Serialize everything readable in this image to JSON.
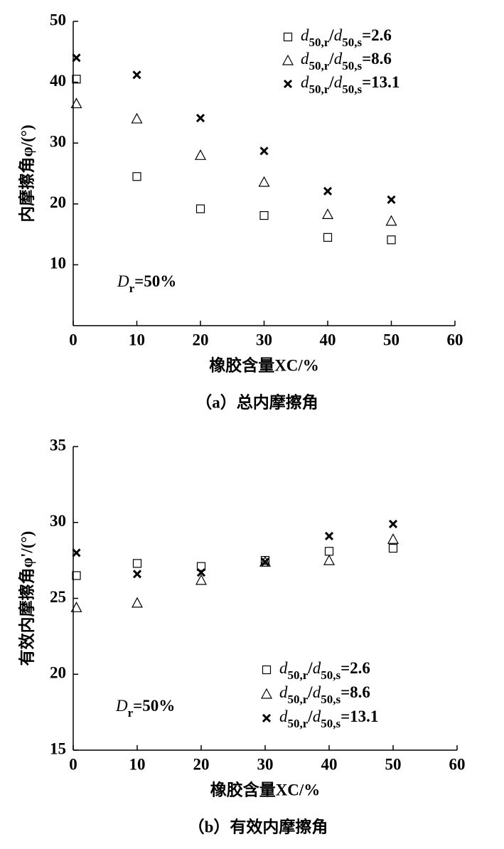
{
  "chart_data": [
    {
      "type": "scatter",
      "xlabel": "橡胶含量XC/%",
      "ylabel": "内摩擦角φ/(°)",
      "caption": "（a）总内摩擦角",
      "annotation": "Dr=50%",
      "legend": "upper right",
      "xlim": [
        0,
        60
      ],
      "xticks": [
        0,
        10,
        20,
        30,
        40,
        50,
        60
      ],
      "ylim": [
        0,
        50
      ],
      "yticks": [
        10,
        20,
        30,
        40,
        50
      ],
      "x": [
        0.5,
        10,
        20,
        30,
        40,
        50
      ],
      "series": [
        {
          "name": "d50,r/d50,s=2.6",
          "marker": "square",
          "color": "#000000",
          "values": [
            40.5,
            24.5,
            19.2,
            18.1,
            14.5,
            14.1
          ]
        },
        {
          "name": "d50,r/d50,s=8.6",
          "marker": "triangle",
          "color": "#000000",
          "values": [
            36.5,
            34.0,
            28.0,
            23.6,
            18.3,
            17.2
          ]
        },
        {
          "name": "d50,r/d50,s=13.1",
          "marker": "x",
          "color": "#000000",
          "values": [
            44.0,
            41.2,
            34.1,
            28.7,
            22.1,
            20.7
          ]
        }
      ]
    },
    {
      "type": "scatter",
      "xlabel": "橡胶含量XC/%",
      "ylabel": "有效内摩擦角φ'/(°)",
      "caption": "（b）有效内摩擦角",
      "annotation": "Dr=50%",
      "legend": "lower right",
      "xlim": [
        0,
        60
      ],
      "xticks": [
        0,
        10,
        20,
        30,
        40,
        50,
        60
      ],
      "ylim": [
        15,
        35
      ],
      "yticks": [
        15,
        20,
        25,
        30,
        35
      ],
      "x": [
        0.5,
        10,
        20,
        30,
        40,
        50
      ],
      "series": [
        {
          "name": "d50,r/d50,s=2.6",
          "marker": "square",
          "color": "#000000",
          "values": [
            26.5,
            27.3,
            27.1,
            27.5,
            28.1,
            28.3
          ]
        },
        {
          "name": "d50,r/d50,s=8.6",
          "marker": "triangle",
          "color": "#000000",
          "values": [
            24.4,
            24.7,
            26.2,
            27.4,
            27.5,
            28.9
          ]
        },
        {
          "name": "d50,r/d50,s=13.1",
          "marker": "x",
          "color": "#000000",
          "values": [
            28.0,
            26.6,
            26.7,
            27.4,
            29.1,
            29.9
          ]
        }
      ]
    }
  ]
}
